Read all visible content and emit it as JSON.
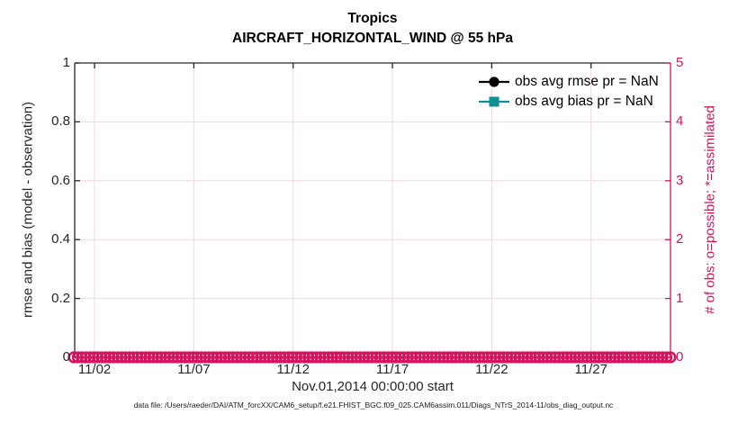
{
  "title": {
    "line1": "Tropics",
    "line2": "AIRCRAFT_HORIZONTAL_WIND @ 55 hPa"
  },
  "chart_data": {
    "type": "line",
    "title": "Tropics",
    "subtitle": "AIRCRAFT_HORIZONTAL_WIND @ 55 hPa",
    "x_axis": {
      "label": "Nov.01,2014 00:00:00 start",
      "range_days": 30,
      "tick_day_offsets": [
        1,
        6,
        11,
        16,
        21,
        26
      ],
      "tick_labels": [
        "11/02",
        "11/07",
        "11/12",
        "11/17",
        "11/22",
        "11/27"
      ]
    },
    "y_left": {
      "label": "rmse and bias (model - observation)",
      "lim": [
        0,
        1
      ],
      "tick_values": [
        0,
        0.2,
        0.4,
        0.6,
        0.8,
        1
      ],
      "tick_labels": [
        "0",
        "0.2",
        "0.4",
        "0.6",
        "0.8",
        "1"
      ]
    },
    "y_right": {
      "label": "# of obs: o=possible; *=assimilated",
      "lim": [
        0,
        5
      ],
      "tick_values": [
        0,
        1,
        2,
        3,
        4,
        5
      ],
      "tick_labels": [
        "0",
        "1",
        "2",
        "3",
        "4",
        "5"
      ]
    },
    "series": [
      {
        "name": "obs avg rmse pr = NaN",
        "marker": "filled-circle",
        "color": "#000000",
        "values": []
      },
      {
        "name": "obs avg bias pr = NaN",
        "marker": "filled-square",
        "color": "#0f9090",
        "values": []
      },
      {
        "name": "# of obs: o=possible",
        "axis": "right",
        "marker": "open-circle",
        "color": "#d6145c",
        "constant_value": 0,
        "note": "dense row of overlapping circle markers at 0 across the full time axis"
      }
    ],
    "grid": true,
    "legend_position": "inside-top-right"
  },
  "legend": {
    "items": [
      {
        "label": "obs avg rmse pr = NaN",
        "marker": "circle",
        "color": "#000000"
      },
      {
        "label": "obs avg bias pr = NaN",
        "marker": "square",
        "color": "#0f9090"
      }
    ]
  },
  "footer": {
    "text": "data file: /Users/raeder/DAI/ATM_forcXX/CAM6_setup/f.e21.FHIST_BGC.f09_025.CAM6assim.011/Diags_NTrS_2014-11/obs_diag_output.nc"
  },
  "colors": {
    "accent_pink": "#d6145c",
    "grid_pink": "#f6d5e1",
    "axis_dark": "#262626",
    "bias_teal": "#0f9090",
    "rmse_black": "#000000",
    "background": "#ffffff"
  }
}
